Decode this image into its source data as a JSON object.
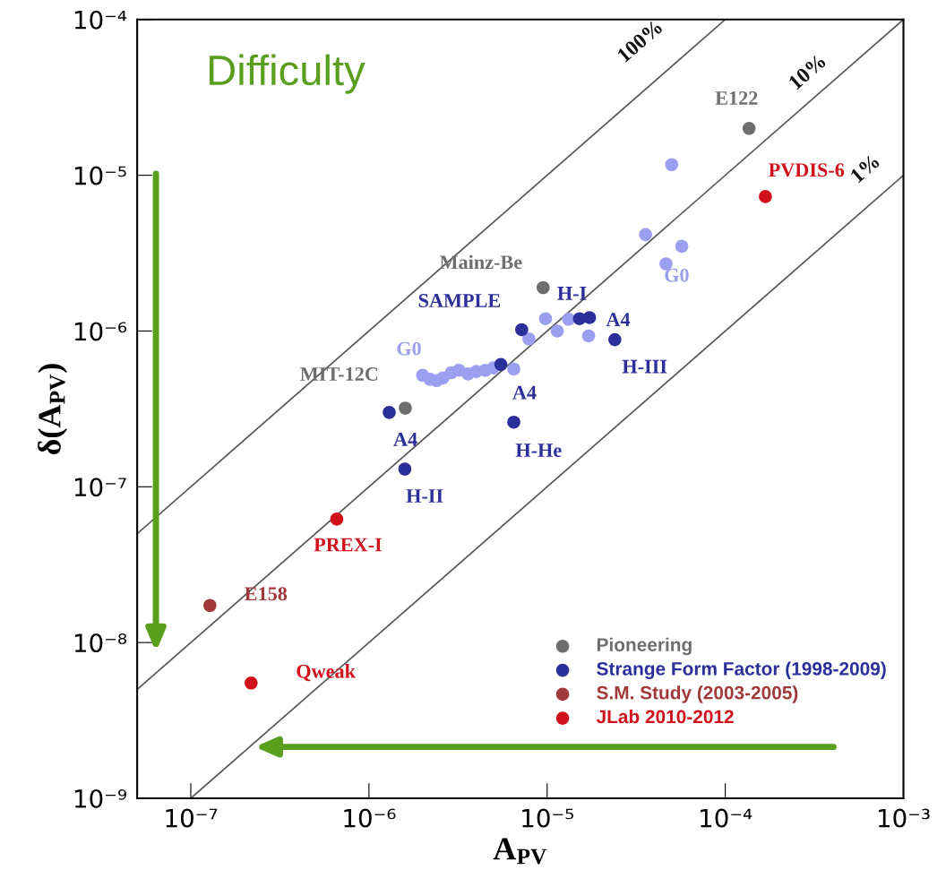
{
  "chart_data": {
    "type": "scatter",
    "xlabel": "A$_{PV}$",
    "ylabel": "δ(A$_{PV}$)",
    "log": "xy",
    "grid": false,
    "legend": "bottom right",
    "xlim": [
      5e-08,
      0.001
    ],
    "ylim": [
      1e-09,
      0.0001
    ],
    "xticks": [
      {
        "value": 1e-07,
        "label": "10⁻⁷"
      },
      {
        "value": 1e-06,
        "label": "10⁻⁶"
      },
      {
        "value": 1e-05,
        "label": "10⁻⁵"
      },
      {
        "value": 0.0001,
        "label": "10⁻⁴"
      },
      {
        "value": 0.001,
        "label": "10⁻³"
      }
    ],
    "yticks": [
      {
        "value": 1e-09,
        "label": "10⁻⁹"
      },
      {
        "value": 1e-08,
        "label": "10⁻⁸"
      },
      {
        "value": 1e-07,
        "label": "10⁻⁷"
      },
      {
        "value": 1e-06,
        "label": "10⁻⁶"
      },
      {
        "value": 1e-05,
        "label": "10⁻⁵"
      },
      {
        "value": 0.0001,
        "label": "10⁻⁴"
      }
    ],
    "series": [
      {
        "type": "line",
        "color": "#555555",
        "marker": "none",
        "line_style": "solid",
        "x": [
          5e-08,
          0.0001
        ],
        "values": [
          5e-08,
          0.0001
        ]
      },
      {
        "type": "line",
        "color": "#555555",
        "marker": "none",
        "line_style": "solid",
        "x": [
          5e-08,
          0.001
        ],
        "values": [
          5e-09,
          0.0001
        ]
      },
      {
        "type": "line",
        "color": "#555555",
        "marker": "none",
        "line_style": "solid",
        "x": [
          1e-07,
          0.001
        ],
        "values": [
          1e-09,
          1e-05
        ]
      },
      {
        "color": "#9a9ff0",
        "marker": "circle",
        "x": [
          2e-06,
          2.2e-06,
          2.4e-06,
          2.6e-06,
          2.9e-06,
          3.2e-06,
          3.6e-06,
          4e-06,
          4.5e-06,
          5e-06,
          5.7e-06,
          6.5e-06,
          7.9e-06,
          9.8e-06,
          1.14e-05,
          1.32e-05,
          1.71e-05,
          3.57e-05,
          4.65e-05,
          5e-05,
          5.7e-05
        ],
        "values": [
          5.2e-07,
          4.9e-07,
          4.8e-07,
          5e-07,
          5.4e-07,
          5.6e-07,
          5.3e-07,
          5.5e-07,
          5.6e-07,
          5.8e-07,
          null,
          5.7e-07,
          8.9e-07,
          1.2e-06,
          1e-06,
          1.19e-06,
          9.3e-07,
          4.16e-06,
          2.7e-06,
          1.17e-05,
          3.5e-06
        ]
      },
      {
        "name": "Pioneering",
        "color": "#6e6e6e",
        "marker": "circle",
        "x": [
          0.000136,
          9.5e-06,
          1.6e-06
        ],
        "values": [
          2e-05,
          1.9e-06,
          3.2e-07
        ]
      },
      {
        "name": "Strange Form Factor (1998-2009)",
        "color": "#2b2f9a",
        "marker": "circle",
        "x": [
          7.2e-06,
          1.52e-05,
          1.73e-05,
          2.4e-05,
          5.5e-06,
          1.3e-06,
          1.59e-06,
          6.5e-06
        ],
        "values": [
          1.02e-06,
          1.2e-06,
          1.22e-06,
          8.8e-07,
          6.1e-07,
          3e-07,
          1.3e-07,
          2.6e-07
        ]
      },
      {
        "name": "S.M. Study (2003-2005)",
        "color": "#a03a3a",
        "marker": "circle",
        "x": [
          1.28e-07
        ],
        "values": [
          1.73e-08
        ]
      },
      {
        "name": "JLab 2010-2012",
        "color": "#d0101a",
        "marker": "circle",
        "x": [
          0.000168,
          6.6e-07,
          2.18e-07
        ],
        "values": [
          7.3e-06,
          6.2e-08,
          5.5e-09
        ]
      }
    ],
    "annotations": [
      "Difficulty",
      {
        "text": "100%",
        "x": 4.5e-05,
        "y": 4.5e-05
      },
      {
        "text": "10%",
        "x": 0.00035,
        "y": 3.5e-05
      },
      {
        "text": "1%",
        "x": 0.00075,
        "y": 7.5e-06
      },
      {
        "text": "E122",
        "x": 0.000136,
        "y": 2e-05
      },
      {
        "text": "PVDIS-6",
        "x": 0.000168,
        "y": 7.3e-06
      },
      {
        "text": "G0",
        "x": 3.57e-05,
        "y": 4.16e-06
      },
      {
        "text": "Mainz-Be",
        "x": 9.5e-06,
        "y": 1.9e-06
      },
      {
        "text": "SAMPLE",
        "x": 7.2e-06,
        "y": 1.02e-06
      },
      {
        "text": "H-I",
        "x": 1.52e-05,
        "y": 1.2e-06
      },
      {
        "text": "A4",
        "x": 1.73e-05,
        "y": 1.22e-06
      },
      {
        "text": "H-III",
        "x": 2.4e-05,
        "y": 8.8e-07
      },
      {
        "text": "A4",
        "x": 5.5e-06,
        "y": 6.1e-07
      },
      {
        "text": "G0",
        "x": 2e-06,
        "y": 5.2e-07
      },
      {
        "text": "MIT-12C",
        "x": 1.6e-06,
        "y": 3.2e-07
      },
      {
        "text": "A4",
        "x": 1.3e-06,
        "y": 3e-07
      },
      {
        "text": "H-II",
        "x": 1.59e-06,
        "y": 1.3e-07
      },
      {
        "text": "H-He",
        "x": 6.5e-06,
        "y": 2.6e-07
      },
      {
        "text": "PREX-I",
        "x": 6.6e-07,
        "y": 6.2e-08
      },
      {
        "text": "E158",
        "x": 1.28e-07,
        "y": 1.73e-08
      },
      {
        "text": "Qweak",
        "x": 2.18e-07,
        "y": 5.5e-09
      }
    ]
  }
}
